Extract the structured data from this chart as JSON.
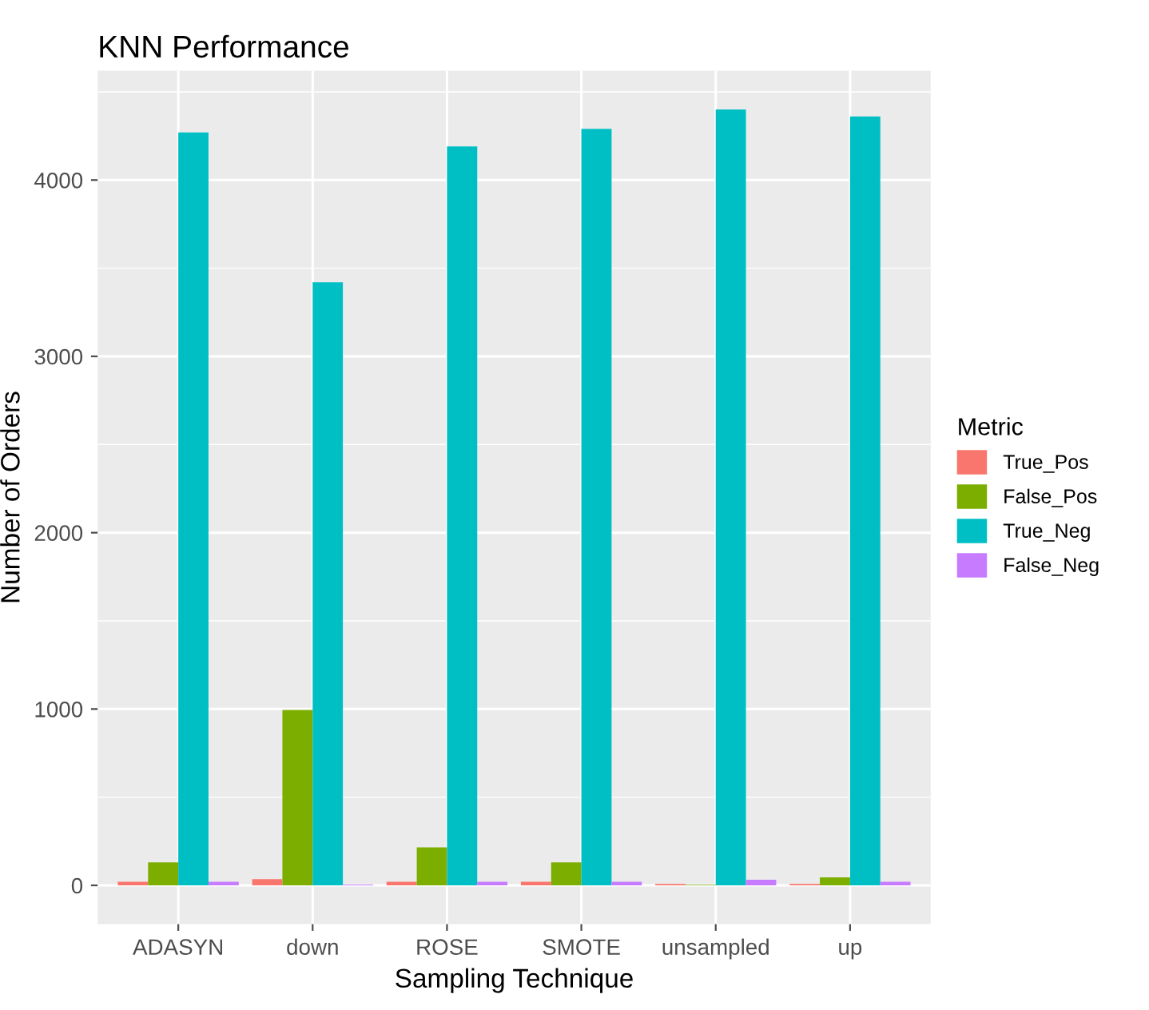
{
  "chart_data": {
    "type": "bar",
    "title": "KNN Performance",
    "xlabel": "Sampling Technique",
    "ylabel": "Number of Orders",
    "legend_title": "Metric",
    "legend": "right",
    "categories": [
      "ADASYN",
      "down",
      "ROSE",
      "SMOTE",
      "unsampled",
      "up"
    ],
    "series": [
      {
        "name": "True_Pos",
        "color": "#f8766d",
        "values": [
          20,
          35,
          20,
          20,
          8,
          8
        ]
      },
      {
        "name": "False_Pos",
        "color": "#7cae00",
        "values": [
          130,
          995,
          215,
          130,
          3,
          45
        ]
      },
      {
        "name": "True_Neg",
        "color": "#00bfc4",
        "values": [
          4270,
          3420,
          4190,
          4290,
          4400,
          4360
        ]
      },
      {
        "name": "False_Neg",
        "color": "#c77cff",
        "values": [
          20,
          5,
          20,
          20,
          32,
          20
        ]
      }
    ],
    "ylim": [
      -220,
      4620
    ],
    "yticks": [
      0,
      1000,
      2000,
      3000,
      4000
    ],
    "grid": true
  }
}
